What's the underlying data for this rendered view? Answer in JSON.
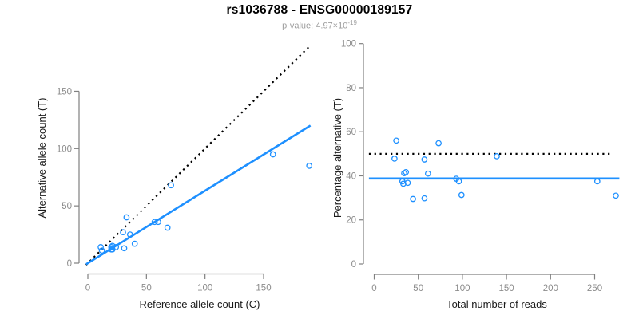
{
  "title": "rs1036788 - ENSG00000189157",
  "subtitle": {
    "prefix": "p-value: 4.97×10",
    "exponent": "-19"
  },
  "colors": {
    "accent": "#1E90FF",
    "dotted": "#000000",
    "axis_line": "#808080",
    "tick_label": "#8c8c8c",
    "axis_title": "#1a1a1a",
    "title": "#000000",
    "subtitle": "#9e9e9e",
    "background": "#ffffff"
  },
  "chart_data": [
    {
      "type": "scatter",
      "panel": "left",
      "xlabel": "Reference allele count (C)",
      "ylabel": "Alternative allele count (T)",
      "xticks": [
        0,
        50,
        100,
        150
      ],
      "yticks": [
        0,
        50,
        100,
        150
      ],
      "xlim": [
        0,
        190
      ],
      "ylim": [
        0,
        190
      ],
      "grid": false,
      "legend": "none",
      "points": [
        [
          12,
          11
        ],
        [
          11,
          14
        ],
        [
          20,
          12
        ],
        [
          21,
          12
        ],
        [
          20,
          14
        ],
        [
          21,
          15
        ],
        [
          24,
          14
        ],
        [
          31,
          13
        ],
        [
          30,
          27
        ],
        [
          40,
          17
        ],
        [
          36,
          25
        ],
        [
          33,
          40
        ],
        [
          57,
          36
        ],
        [
          60,
          36
        ],
        [
          68,
          31
        ],
        [
          71,
          68
        ],
        [
          158,
          95
        ],
        [
          189,
          85
        ]
      ],
      "lines": [
        {
          "name": "identity",
          "style": "dotted",
          "color": "#000000",
          "slope": 1,
          "intercept": 0,
          "x_extent": [
            -1.5,
            188.5
          ]
        },
        {
          "name": "fit",
          "style": "solid",
          "color": "#1E90FF",
          "slope": 0.632,
          "intercept": 0,
          "x_extent": [
            -1.5,
            190
          ]
        }
      ]
    },
    {
      "type": "scatter",
      "panel": "right",
      "xlabel": "Total number of reads",
      "ylabel": "Percentage alternative (T)",
      "xticks": [
        0,
        50,
        100,
        150,
        200,
        250
      ],
      "yticks": [
        0,
        20,
        40,
        60,
        80,
        100
      ],
      "xlim": [
        0,
        278
      ],
      "ylim": [
        0,
        100
      ],
      "grid": false,
      "legend": "none",
      "points": [
        [
          23,
          47.8
        ],
        [
          25,
          56
        ],
        [
          32,
          37.5
        ],
        [
          33,
          36.4
        ],
        [
          34,
          41.2
        ],
        [
          36,
          41.7
        ],
        [
          38,
          36.8
        ],
        [
          44,
          29.5
        ],
        [
          57,
          47.4
        ],
        [
          57,
          29.8
        ],
        [
          61,
          41
        ],
        [
          73,
          54.8
        ],
        [
          93,
          38.7
        ],
        [
          96,
          37.5
        ],
        [
          99,
          31.3
        ],
        [
          139,
          48.9
        ],
        [
          253,
          37.5
        ],
        [
          274,
          31
        ]
      ],
      "lines": [
        {
          "name": "fifty-percent",
          "style": "dotted",
          "color": "#000000",
          "y": 50,
          "x_extent": [
            -6,
            271
          ]
        },
        {
          "name": "mean-percentage",
          "style": "solid",
          "color": "#1E90FF",
          "y": 38.8,
          "x_extent": [
            -6,
            278
          ]
        }
      ]
    }
  ]
}
